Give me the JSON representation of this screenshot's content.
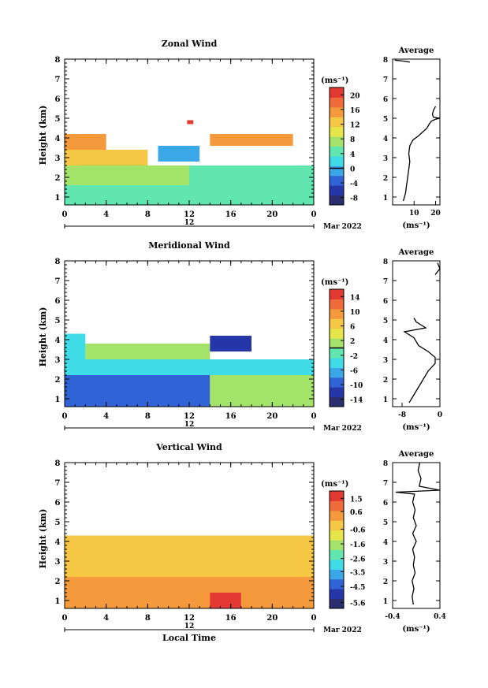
{
  "chart_data": [
    {
      "type": "heatmap",
      "title": "Zonal Wind",
      "ylabel": "Height (km)",
      "xlabel": "",
      "date_label": "Mar 2022",
      "day_label": "12",
      "x_ticks": [
        "0",
        "4",
        "8",
        "12",
        "16",
        "20",
        "0"
      ],
      "xlim": [
        0,
        24
      ],
      "ylim": [
        0.6,
        8
      ],
      "y_ticks": [
        "1",
        "2",
        "3",
        "4",
        "5",
        "6",
        "7",
        "8"
      ],
      "colorbar": {
        "unit": "(ms⁻¹)",
        "ticks": [
          "-8",
          "-4",
          "0",
          "4",
          "8",
          "12",
          "16",
          "20"
        ],
        "min": -10,
        "max": 22,
        "zero_line": 0
      },
      "average_profile": {
        "title": "Average",
        "xlabel": "(ms⁻¹)",
        "x_ticks": [
          "10",
          "20"
        ],
        "xlim": [
          0,
          22
        ],
        "points": [
          [
            5,
            0.8
          ],
          [
            6,
            1.2
          ],
          [
            6.5,
            1.6
          ],
          [
            7,
            2
          ],
          [
            7.5,
            2.4
          ],
          [
            8,
            2.8
          ],
          [
            7.5,
            3.2
          ],
          [
            8,
            3.6
          ],
          [
            9.5,
            3.9
          ],
          [
            12,
            4.1
          ],
          [
            14,
            4.3
          ],
          [
            16,
            4.5
          ],
          [
            17,
            4.7
          ],
          [
            18,
            4.85
          ],
          [
            20,
            4.95
          ],
          [
            22,
            5.0
          ],
          [
            19,
            5.05
          ],
          [
            18.5,
            5.2
          ],
          [
            19,
            5.4
          ],
          [
            20,
            5.6
          ]
        ],
        "top_points": [
          [
            1,
            7.95
          ],
          [
            5,
            7.9
          ],
          [
            8,
            7.85
          ]
        ]
      },
      "regions": [
        {
          "x0": 0,
          "x1": 24,
          "y0": 0.6,
          "y1": 1.6,
          "value": 5
        },
        {
          "x0": 0,
          "x1": 12,
          "y0": 1.6,
          "y1": 2.6,
          "value": 8
        },
        {
          "x0": 12,
          "x1": 24,
          "y0": 1.6,
          "y1": 2.6,
          "value": 5
        },
        {
          "x0": 0,
          "x1": 8,
          "y0": 2.6,
          "y1": 3.4,
          "value": 12
        },
        {
          "x0": 0,
          "x1": 4,
          "y0": 3.4,
          "y1": 4.2,
          "value": 16
        },
        {
          "x0": 9,
          "x1": 13,
          "y0": 2.8,
          "y1": 3.6,
          "value": -1
        },
        {
          "x0": 14,
          "x1": 22,
          "y0": 3.6,
          "y1": 4.2,
          "value": 14
        },
        {
          "x0": 11.8,
          "x1": 12.4,
          "y0": 4.7,
          "y1": 4.9,
          "value": 22
        }
      ]
    },
    {
      "type": "heatmap",
      "title": "Meridional Wind",
      "ylabel": "Height (km)",
      "xlabel": "",
      "date_label": "Mar 2022",
      "day_label": "12",
      "x_ticks": [
        "0",
        "4",
        "8",
        "12",
        "16",
        "20",
        "0"
      ],
      "xlim": [
        0,
        24
      ],
      "ylim": [
        0.6,
        8
      ],
      "y_ticks": [
        "1",
        "2",
        "3",
        "4",
        "5",
        "6",
        "7",
        "8"
      ],
      "colorbar": {
        "unit": "(ms⁻¹)",
        "ticks": [
          "-14",
          "-10",
          "-6",
          "-2",
          "2",
          "6",
          "10",
          "14"
        ],
        "min": -16,
        "max": 16,
        "zero_line": 0
      },
      "average_profile": {
        "title": "Average",
        "xlabel": "(ms⁻¹)",
        "x_ticks": [
          "-8",
          "0"
        ],
        "xlim": [
          -10,
          0
        ],
        "points": [
          [
            -6.5,
            0.8
          ],
          [
            -5.5,
            1.2
          ],
          [
            -4.5,
            1.6
          ],
          [
            -3.5,
            2
          ],
          [
            -2.5,
            2.4
          ],
          [
            -1,
            2.8
          ],
          [
            -1,
            3.1
          ],
          [
            -2.5,
            3.4
          ],
          [
            -4.5,
            3.7
          ],
          [
            -5.5,
            4.1
          ],
          [
            -7.5,
            4.4
          ],
          [
            -3,
            4.6
          ],
          [
            -5,
            4.9
          ],
          [
            -5.5,
            5.1
          ]
        ],
        "top_points": [
          [
            -1,
            7.3
          ],
          [
            0,
            7.6
          ],
          [
            -0.5,
            7.9
          ]
        ]
      },
      "regions": [
        {
          "x0": 0,
          "x1": 14,
          "y0": 0.6,
          "y1": 2.2,
          "value": -10
        },
        {
          "x0": 14,
          "x1": 24,
          "y0": 0.6,
          "y1": 2.2,
          "value": 1
        },
        {
          "x0": 0,
          "x1": 24,
          "y0": 2.2,
          "y1": 3.0,
          "value": -5
        },
        {
          "x0": 2,
          "x1": 14,
          "y0": 3.0,
          "y1": 3.8,
          "value": 1
        },
        {
          "x0": 0,
          "x1": 2,
          "y0": 3.0,
          "y1": 4.3,
          "value": -3
        },
        {
          "x0": 14,
          "x1": 18,
          "y0": 3.4,
          "y1": 4.2,
          "value": -11
        }
      ]
    },
    {
      "type": "heatmap",
      "title": "Vertical Wind",
      "ylabel": "Height (km)",
      "xlabel": "Local Time",
      "date_label": "Mar 2022",
      "day_label": "12",
      "x_ticks": [
        "0",
        "4",
        "8",
        "12",
        "16",
        "20",
        "0"
      ],
      "xlim": [
        0,
        24
      ],
      "ylim": [
        0.6,
        8
      ],
      "y_ticks": [
        "1",
        "2",
        "3",
        "4",
        "5",
        "6",
        "7",
        "8"
      ],
      "colorbar": {
        "unit": "(ms⁻¹)",
        "ticks": [
          "-5.6",
          "-4.5",
          "-3.5",
          "-2.6",
          "-1.6",
          "-0.6",
          "0.6",
          "1.5"
        ],
        "min": -6,
        "max": 2,
        "zero_line": null
      },
      "average_profile": {
        "title": "Average",
        "xlabel": "(ms⁻¹)",
        "x_ticks": [
          "-0.4",
          "0.4"
        ],
        "xlim": [
          -0.4,
          0.4
        ],
        "points": [
          [
            -0.05,
            0.8
          ],
          [
            -0.07,
            1.2
          ],
          [
            -0.04,
            1.6
          ],
          [
            -0.07,
            2
          ],
          [
            -0.02,
            2.4
          ],
          [
            -0.05,
            2.8
          ],
          [
            -0.03,
            3.2
          ],
          [
            -0.06,
            3.6
          ],
          [
            0.0,
            4.0
          ],
          [
            -0.06,
            4.4
          ],
          [
            0.0,
            4.8
          ],
          [
            -0.05,
            5.2
          ],
          [
            -0.02,
            5.6
          ],
          [
            -0.06,
            6.0
          ],
          [
            -0.03,
            6.4
          ],
          [
            -0.35,
            6.5
          ],
          [
            0.4,
            6.6
          ],
          [
            0.05,
            6.8
          ],
          [
            0.08,
            7.2
          ],
          [
            0.03,
            7.6
          ],
          [
            0.06,
            8.0
          ]
        ]
      },
      "regions": [
        {
          "x0": 0,
          "x1": 24,
          "y0": 0.6,
          "y1": 2.2,
          "value": 0.2
        },
        {
          "x0": 0,
          "x1": 24,
          "y0": 2.2,
          "y1": 4.3,
          "value": -0.3
        },
        {
          "x0": 14,
          "x1": 17,
          "y0": 0.6,
          "y1": 1.4,
          "value": 1.4
        }
      ]
    }
  ]
}
